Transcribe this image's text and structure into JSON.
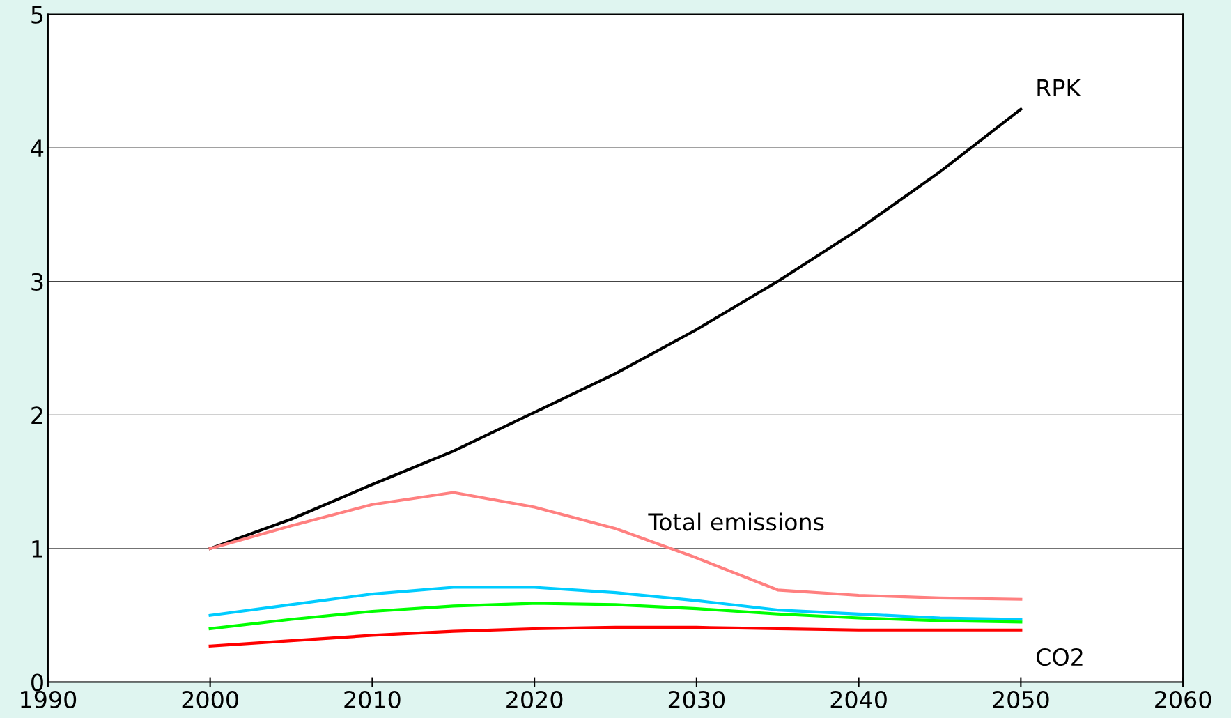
{
  "chart_data": {
    "type": "line",
    "x": [
      2000,
      2005,
      2010,
      2015,
      2020,
      2025,
      2030,
      2035,
      2040,
      2045,
      2050
    ],
    "series": [
      {
        "name": "RPK",
        "color": "#000000",
        "values": [
          1.0,
          1.22,
          1.48,
          1.73,
          2.02,
          2.31,
          2.64,
          3.0,
          3.39,
          3.82,
          4.29
        ]
      },
      {
        "name": "Total emissions",
        "color": "#ff8080",
        "values": [
          1.0,
          1.17,
          1.33,
          1.42,
          1.31,
          1.15,
          0.93,
          0.69,
          0.65,
          0.63,
          0.62
        ]
      },
      {
        "color": "#00ccff",
        "values": [
          0.5,
          0.58,
          0.66,
          0.71,
          0.71,
          0.67,
          0.61,
          0.54,
          0.51,
          0.48,
          0.47
        ]
      },
      {
        "color": "#00ff00",
        "values": [
          0.4,
          0.47,
          0.53,
          0.57,
          0.59,
          0.58,
          0.55,
          0.51,
          0.48,
          0.46,
          0.45
        ]
      },
      {
        "name": "CO2",
        "color": "#ff0000",
        "values": [
          0.27,
          0.31,
          0.35,
          0.38,
          0.4,
          0.41,
          0.41,
          0.4,
          0.39,
          0.39,
          0.39
        ]
      }
    ],
    "xlim": [
      1990,
      2060
    ],
    "xticks": [
      1990,
      2000,
      2010,
      2020,
      2030,
      2040,
      2050,
      2060
    ],
    "ylim": [
      0,
      5
    ],
    "yticks": [
      0,
      1,
      2,
      3,
      4,
      5
    ],
    "grid": "y",
    "legend": false,
    "marker": "none",
    "line_style": "solid"
  }
}
